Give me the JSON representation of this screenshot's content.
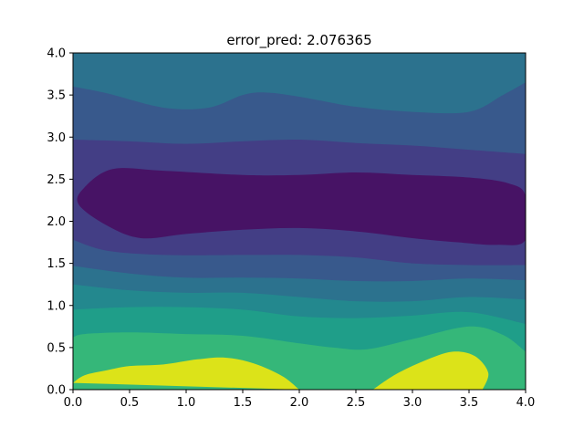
{
  "chart_data": {
    "type": "contourf",
    "title": "error_pred: 2.076365",
    "xlabel": "",
    "ylabel": "",
    "xlim": [
      0.0,
      4.0
    ],
    "ylim": [
      0.0,
      4.0
    ],
    "xticks": [
      "0.0",
      "0.5",
      "1.0",
      "1.5",
      "2.0",
      "2.5",
      "3.0",
      "3.5",
      "4.0"
    ],
    "yticks": [
      "0.0",
      "0.5",
      "1.0",
      "1.5",
      "2.0",
      "2.5",
      "3.0",
      "3.5",
      "4.0"
    ],
    "grid": false,
    "colormap": "viridis",
    "level_colors": [
      "#471365",
      "#433e85",
      "#38598c",
      "#2c728e",
      "#23888e",
      "#1f9e89",
      "#35b779",
      "#6ece58",
      "#b5de2b",
      "#dce319"
    ],
    "contour_boundaries": [
      {
        "between_levels": [
          8,
          9
        ],
        "segments": [
          {
            "points": [
              [
                0.0,
                0.08
              ],
              [
                0.1,
                0.17
              ],
              [
                0.3,
                0.23
              ],
              [
                0.5,
                0.28
              ],
              [
                0.8,
                0.3
              ],
              [
                1.1,
                0.36
              ],
              [
                1.35,
                0.38
              ],
              [
                1.6,
                0.31
              ],
              [
                1.85,
                0.16
              ],
              [
                2.0,
                0.0
              ]
            ]
          },
          {
            "points": [
              [
                2.65,
                0.0
              ],
              [
                2.85,
                0.18
              ],
              [
                3.1,
                0.34
              ],
              [
                3.35,
                0.45
              ],
              [
                3.55,
                0.4
              ],
              [
                3.67,
                0.2
              ],
              [
                3.62,
                0.0
              ]
            ]
          }
        ]
      },
      {
        "between_levels": [
          7,
          8
        ],
        "points": [
          [
            0.0,
            0.62
          ],
          [
            0.1,
            0.66
          ],
          [
            0.5,
            0.68
          ],
          [
            1.0,
            0.66
          ],
          [
            1.5,
            0.64
          ],
          [
            2.0,
            0.55
          ],
          [
            2.3,
            0.5
          ],
          [
            2.6,
            0.48
          ],
          [
            3.0,
            0.6
          ],
          [
            3.5,
            0.75
          ],
          [
            3.8,
            0.65
          ],
          [
            4.0,
            0.45
          ]
        ]
      },
      {
        "between_levels": [
          6,
          7
        ],
        "points": [
          [
            0.0,
            0.95
          ],
          [
            0.5,
            0.98
          ],
          [
            1.0,
            0.98
          ],
          [
            1.5,
            0.95
          ],
          [
            2.0,
            0.87
          ],
          [
            2.5,
            0.85
          ],
          [
            3.0,
            0.88
          ],
          [
            3.5,
            0.92
          ],
          [
            4.0,
            0.78
          ]
        ]
      },
      {
        "between_levels": [
          5,
          6
        ],
        "points": [
          [
            0.0,
            1.25
          ],
          [
            0.5,
            1.18
          ],
          [
            1.0,
            1.15
          ],
          [
            1.5,
            1.15
          ],
          [
            2.0,
            1.1
          ],
          [
            2.5,
            1.05
          ],
          [
            3.0,
            1.05
          ],
          [
            3.5,
            1.1
          ],
          [
            4.0,
            1.07
          ]
        ]
      },
      {
        "between_levels": [
          4,
          5
        ],
        "points": [
          [
            0.0,
            1.47
          ],
          [
            0.5,
            1.38
          ],
          [
            1.0,
            1.33
          ],
          [
            1.5,
            1.33
          ],
          [
            2.0,
            1.32
          ],
          [
            2.5,
            1.29
          ],
          [
            3.0,
            1.29
          ],
          [
            3.5,
            1.32
          ],
          [
            4.0,
            1.3
          ]
        ]
      },
      {
        "between_levels": [
          3,
          4
        ],
        "points": [
          [
            0.0,
            1.78
          ],
          [
            0.3,
            1.65
          ],
          [
            0.8,
            1.6
          ],
          [
            1.5,
            1.6
          ],
          [
            2.0,
            1.6
          ],
          [
            2.5,
            1.57
          ],
          [
            3.0,
            1.5
          ],
          [
            3.5,
            1.48
          ],
          [
            4.0,
            1.48
          ]
        ]
      },
      {
        "between_levels": [
          2,
          3
        ],
        "points": [
          [
            0.0,
            2.97
          ],
          [
            0.5,
            2.95
          ],
          [
            1.0,
            2.92
          ],
          [
            1.5,
            2.95
          ],
          [
            2.0,
            2.97
          ],
          [
            2.5,
            2.93
          ],
          [
            3.0,
            2.9
          ],
          [
            3.5,
            2.85
          ],
          [
            4.0,
            2.8
          ]
        ]
      },
      {
        "between_levels": [
          1,
          2
        ],
        "closed": true,
        "points": [
          [
            0.1,
            2.4
          ],
          [
            0.35,
            2.62
          ],
          [
            0.8,
            2.6
          ],
          [
            1.5,
            2.55
          ],
          [
            2.0,
            2.55
          ],
          [
            2.5,
            2.58
          ],
          [
            3.0,
            2.55
          ],
          [
            3.5,
            2.52
          ],
          [
            3.85,
            2.45
          ],
          [
            4.0,
            2.3
          ],
          [
            4.0,
            1.78
          ],
          [
            3.75,
            1.72
          ],
          [
            3.4,
            1.75
          ],
          [
            3.0,
            1.8
          ],
          [
            2.5,
            1.88
          ],
          [
            2.0,
            1.92
          ],
          [
            1.5,
            1.9
          ],
          [
            1.0,
            1.85
          ],
          [
            0.6,
            1.8
          ],
          [
            0.3,
            1.95
          ],
          [
            0.05,
            2.2
          ]
        ]
      },
      {
        "between_levels": [
          0,
          1
        ],
        "points": [
          [
            0.0,
            3.6
          ],
          [
            0.3,
            3.52
          ],
          [
            0.8,
            3.35
          ],
          [
            1.2,
            3.35
          ],
          [
            1.5,
            3.5
          ],
          [
            1.7,
            3.53
          ],
          [
            2.0,
            3.48
          ],
          [
            2.5,
            3.36
          ],
          [
            3.0,
            3.3
          ],
          [
            3.5,
            3.3
          ],
          [
            3.8,
            3.5
          ],
          [
            4.0,
            3.65
          ]
        ]
      }
    ]
  }
}
